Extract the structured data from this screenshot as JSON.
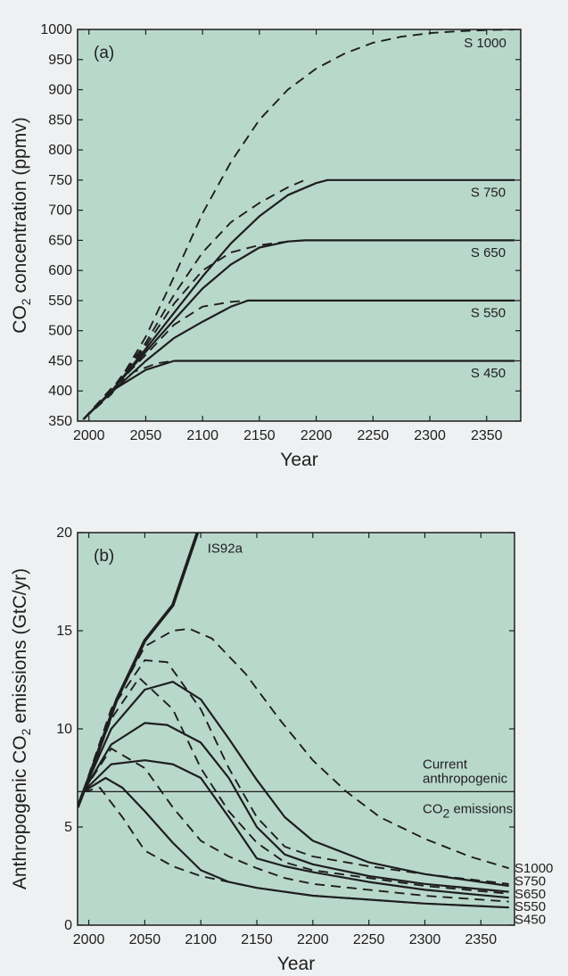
{
  "colors": {
    "plot_background": "#b9d8cc",
    "page_background": "#eef0f1",
    "ink": "#1e1e1e"
  },
  "chart_data": [
    {
      "type": "line",
      "panel_label": "(a)",
      "xlabel": "Year",
      "ylabel_parts": [
        "CO",
        "2",
        " concentration (ppmv)"
      ],
      "xlim": [
        1990,
        2380
      ],
      "ylim": [
        350,
        1000
      ],
      "xticks": [
        2000,
        2050,
        2100,
        2150,
        2200,
        2250,
        2300,
        2350
      ],
      "yticks": [
        350,
        400,
        450,
        500,
        550,
        600,
        650,
        700,
        750,
        800,
        850,
        900,
        950,
        1000
      ],
      "grid": false,
      "series": [
        {
          "name": "S 1000",
          "style": "dashed",
          "x": [
            1995,
            2020,
            2050,
            2075,
            2100,
            2125,
            2150,
            2175,
            2200,
            2225,
            2250,
            2275,
            2300,
            2325,
            2350,
            2375
          ],
          "y": [
            353,
            395,
            490,
            590,
            695,
            780,
            850,
            900,
            935,
            960,
            978,
            988,
            994,
            997,
            999,
            1000
          ]
        },
        {
          "name": "S 750",
          "style": "solid",
          "x": [
            1995,
            2020,
            2050,
            2075,
            2100,
            2125,
            2150,
            2175,
            2200,
            2210,
            2250,
            2300,
            2375
          ],
          "y": [
            353,
            400,
            470,
            530,
            590,
            645,
            690,
            725,
            745,
            750,
            750,
            750,
            750
          ]
        },
        {
          "name": "S 750 (dashed)",
          "style": "dashed",
          "x": [
            1995,
            2020,
            2050,
            2075,
            2100,
            2125,
            2150,
            2175,
            2190
          ],
          "y": [
            353,
            402,
            480,
            560,
            630,
            680,
            712,
            738,
            750
          ]
        },
        {
          "name": "S 650",
          "style": "solid",
          "x": [
            1995,
            2020,
            2050,
            2075,
            2100,
            2125,
            2150,
            2175,
            2190,
            2250,
            2300,
            2375
          ],
          "y": [
            353,
            400,
            465,
            518,
            570,
            610,
            638,
            648,
            650,
            650,
            650,
            650
          ]
        },
        {
          "name": "S 650 (dashed)",
          "style": "dashed",
          "x": [
            1995,
            2020,
            2050,
            2075,
            2100,
            2125,
            2150,
            2175,
            2190
          ],
          "y": [
            353,
            402,
            475,
            545,
            600,
            630,
            642,
            648,
            650
          ]
        },
        {
          "name": "S 550",
          "style": "solid",
          "x": [
            1995,
            2020,
            2050,
            2075,
            2100,
            2125,
            2140,
            2200,
            2300,
            2375
          ],
          "y": [
            353,
            398,
            450,
            488,
            515,
            540,
            550,
            550,
            550,
            550
          ]
        },
        {
          "name": "S 550 (dashed)",
          "style": "dashed",
          "x": [
            1995,
            2020,
            2050,
            2075,
            2100,
            2125,
            2140
          ],
          "y": [
            353,
            402,
            460,
            510,
            540,
            548,
            550
          ]
        },
        {
          "name": "S 450",
          "style": "solid",
          "x": [
            1995,
            2020,
            2050,
            2075,
            2100,
            2200,
            2300,
            2375
          ],
          "y": [
            353,
            400,
            435,
            450,
            450,
            450,
            450,
            450
          ]
        },
        {
          "name": "S 450 (dashed)",
          "style": "dashed",
          "x": [
            1995,
            2020,
            2040,
            2060,
            2075
          ],
          "y": [
            353,
            405,
            432,
            446,
            450
          ]
        }
      ],
      "labels": [
        {
          "text": "S 1000",
          "x": 2330,
          "y": 978
        },
        {
          "text": "S 750",
          "x": 2336,
          "y": 730
        },
        {
          "text": "S 650",
          "x": 2336,
          "y": 630
        },
        {
          "text": "S 550",
          "x": 2336,
          "y": 530
        },
        {
          "text": "S 450",
          "x": 2336,
          "y": 430
        }
      ]
    },
    {
      "type": "line",
      "panel_label": "(b)",
      "xlabel": "Year",
      "ylabel_parts": [
        "Anthropogenic CO",
        "2",
        " emissions (GtC/yr)"
      ],
      "xlim": [
        1990,
        2380
      ],
      "ylim": [
        0,
        20
      ],
      "xticks": [
        2000,
        2050,
        2100,
        2150,
        2200,
        2250,
        2300,
        2350
      ],
      "yticks": [
        0,
        5,
        10,
        15,
        20
      ],
      "grid": false,
      "reference_line": {
        "y": 6.8,
        "label_lines": [
          "Current",
          "anthropogenic"
        ],
        "label_below_parts": [
          "CO",
          "2",
          " emissions"
        ]
      },
      "series": [
        {
          "name": "IS92a",
          "style": "bold",
          "x": [
            1990,
            2000,
            2025,
            2050,
            2075,
            2100
          ],
          "y": [
            6.0,
            7.5,
            11.5,
            14.5,
            16.3,
            20.5
          ]
        },
        {
          "name": "S1000",
          "style": "dashed",
          "x": [
            1995,
            2020,
            2050,
            2075,
            2090,
            2110,
            2140,
            2170,
            2200,
            2230,
            2260,
            2300,
            2340,
            2375
          ],
          "y": [
            6.8,
            11.0,
            14.2,
            15.0,
            15.1,
            14.6,
            12.8,
            10.5,
            8.4,
            6.8,
            5.5,
            4.4,
            3.5,
            2.9
          ]
        },
        {
          "name": "S750",
          "style": "solid",
          "x": [
            1995,
            2020,
            2050,
            2075,
            2100,
            2125,
            2150,
            2175,
            2200,
            2250,
            2300,
            2375
          ],
          "y": [
            6.8,
            10.0,
            12.0,
            12.4,
            11.5,
            9.5,
            7.4,
            5.5,
            4.3,
            3.2,
            2.6,
            2.0
          ]
        },
        {
          "name": "S750 (dashed)",
          "style": "dashed",
          "x": [
            1995,
            2020,
            2050,
            2070,
            2100,
            2125,
            2150,
            2175,
            2200,
            2250,
            2300,
            2375
          ],
          "y": [
            6.8,
            11.0,
            13.5,
            13.4,
            11.0,
            8.0,
            5.5,
            4.0,
            3.5,
            3.0,
            2.6,
            2.1
          ]
        },
        {
          "name": "S650",
          "style": "solid",
          "x": [
            1995,
            2020,
            2050,
            2070,
            2100,
            2125,
            2150,
            2175,
            2200,
            2250,
            2300,
            2375
          ],
          "y": [
            6.8,
            9.2,
            10.3,
            10.2,
            9.3,
            7.5,
            5.0,
            3.6,
            3.1,
            2.5,
            2.1,
            1.7
          ]
        },
        {
          "name": "S650 (dashed)",
          "style": "dashed",
          "x": [
            1995,
            2020,
            2045,
            2075,
            2100,
            2125,
            2150,
            2175,
            2200,
            2250,
            2300,
            2375
          ],
          "y": [
            6.8,
            10.5,
            12.6,
            11.0,
            8.0,
            5.8,
            4.2,
            3.2,
            2.8,
            2.4,
            2.0,
            1.6
          ]
        },
        {
          "name": "S550",
          "style": "solid",
          "x": [
            1995,
            2020,
            2050,
            2075,
            2100,
            2125,
            2150,
            2175,
            2200,
            2250,
            2300,
            2375
          ],
          "y": [
            6.8,
            8.2,
            8.4,
            8.2,
            7.5,
            5.5,
            3.4,
            3.0,
            2.7,
            2.2,
            1.8,
            1.4
          ]
        },
        {
          "name": "S550 (dashed)",
          "style": "dashed",
          "x": [
            1995,
            2020,
            2050,
            2075,
            2100,
            2125,
            2150,
            2175,
            2200,
            2250,
            2300,
            2375
          ],
          "y": [
            6.8,
            9.0,
            8.0,
            6.0,
            4.3,
            3.5,
            2.9,
            2.4,
            2.1,
            1.8,
            1.5,
            1.2
          ]
        },
        {
          "name": "S450",
          "style": "solid",
          "x": [
            1995,
            2015,
            2030,
            2050,
            2075,
            2100,
            2125,
            2150,
            2200,
            2250,
            2300,
            2375
          ],
          "y": [
            6.8,
            7.5,
            7.0,
            5.8,
            4.2,
            2.8,
            2.2,
            1.9,
            1.5,
            1.3,
            1.1,
            0.9
          ]
        },
        {
          "name": "S450 (dashed)",
          "style": "dashed",
          "x": [
            1995,
            2010,
            2030,
            2050,
            2075,
            2100,
            2125,
            2150,
            2200,
            2250,
            2300,
            2375
          ],
          "y": [
            6.8,
            7.0,
            5.5,
            3.8,
            3.0,
            2.5,
            2.2,
            1.9,
            1.5,
            1.3,
            1.1,
            0.9
          ]
        }
      ],
      "labels": [
        {
          "text": "IS92a",
          "x": 2106,
          "y": 19.2
        },
        {
          "text": "S1000",
          "x": 2380,
          "y": 2.9
        },
        {
          "text": "S750",
          "x": 2380,
          "y": 2.25
        },
        {
          "text": "S650",
          "x": 2380,
          "y": 1.6
        },
        {
          "text": "S550",
          "x": 2380,
          "y": 0.95
        },
        {
          "text": "S450",
          "x": 2380,
          "y": 0.3
        }
      ]
    }
  ]
}
